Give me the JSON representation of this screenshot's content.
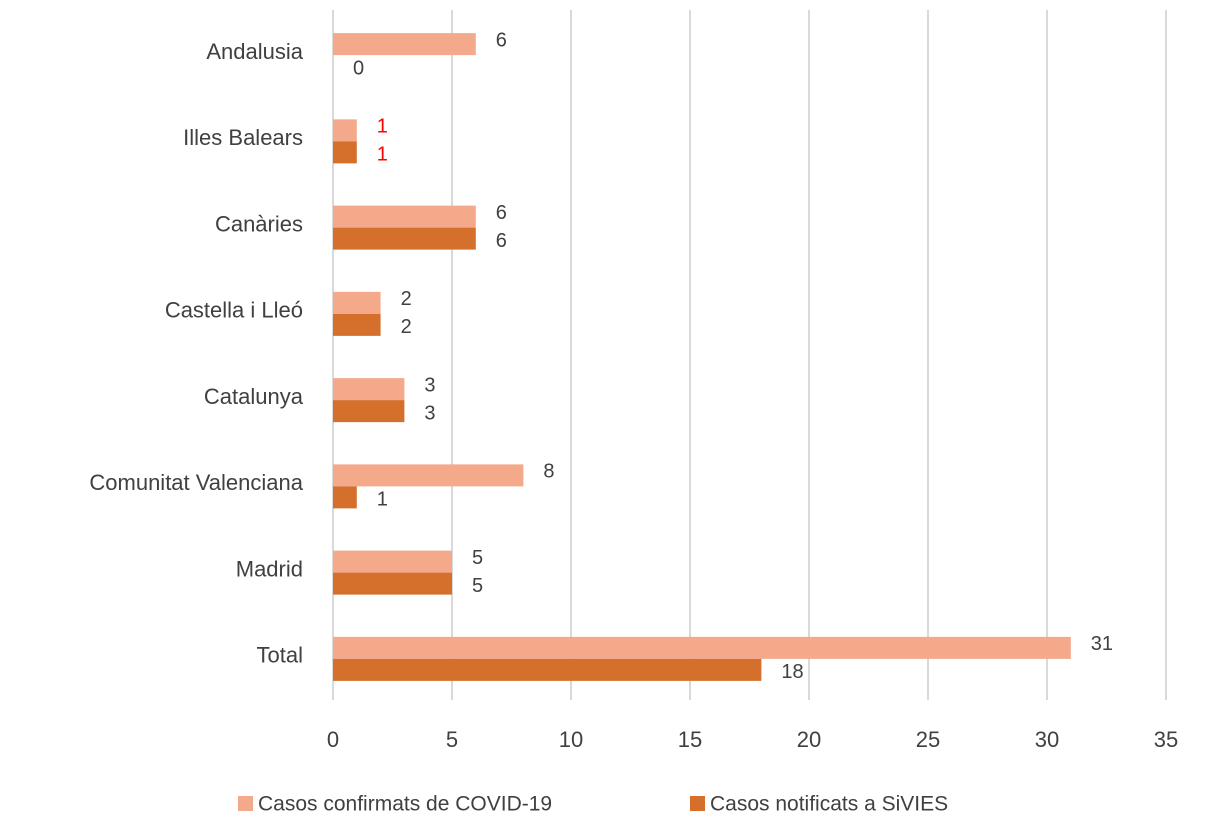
{
  "chart_data": {
    "type": "hbar",
    "categories": [
      "Andalusia",
      "Illes Balears",
      "Canàries",
      "Castella i Lleó",
      "Catalunya",
      "Comunitat Valenciana",
      "Madrid",
      "Total"
    ],
    "series": [
      {
        "name": "Casos confirmats de COVID-19",
        "color": "#f4a98b",
        "values": [
          6,
          1,
          6,
          2,
          3,
          8,
          5,
          31
        ]
      },
      {
        "name": "Casos notificats a SiVIES",
        "color": "#d4702c",
        "values": [
          0,
          1,
          6,
          2,
          3,
          1,
          5,
          18
        ]
      }
    ],
    "xlim": [
      0,
      35
    ],
    "xticks": [
      0,
      5,
      10,
      15,
      20,
      25,
      30,
      35
    ],
    "grid": true,
    "label_color": "#404040",
    "highlight": {
      "index": 1,
      "color": "#ff0000"
    },
    "legend": "bottom"
  }
}
